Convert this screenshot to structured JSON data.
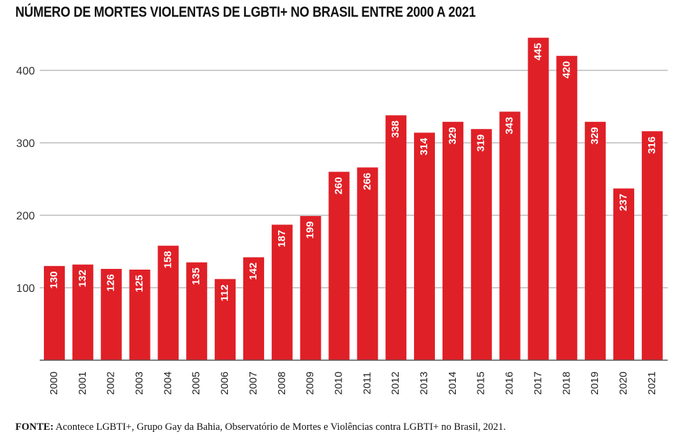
{
  "chart_data": {
    "type": "bar",
    "title": "NÚMERO DE MORTES VIOLENTAS DE LGBTI+ NO BRASIL ENTRE 2000 A 2021",
    "xlabel": "",
    "ylabel": "",
    "ylim": [
      0,
      450
    ],
    "yticks": [
      100,
      200,
      300,
      400
    ],
    "grid": true,
    "categories": [
      "2000",
      "2001",
      "2002",
      "2003",
      "2004",
      "2005",
      "2006",
      "2007",
      "2008",
      "2009",
      "2010",
      "2011",
      "2012",
      "2013",
      "2014",
      "2015",
      "2016",
      "2017",
      "2018",
      "2019",
      "2020",
      "2021"
    ],
    "values": [
      130,
      132,
      126,
      125,
      158,
      135,
      112,
      142,
      187,
      199,
      260,
      266,
      338,
      314,
      329,
      319,
      343,
      445,
      420,
      329,
      237,
      316
    ],
    "bar_color": "#e02027",
    "label_color": "#ffffff"
  },
  "source": {
    "label": "FONTE:",
    "text": " Acontece LGBTI+, Grupo Gay da Bahia, Observatório de Mortes e Violências contra LGBTI+ no Brasil, 2021."
  }
}
